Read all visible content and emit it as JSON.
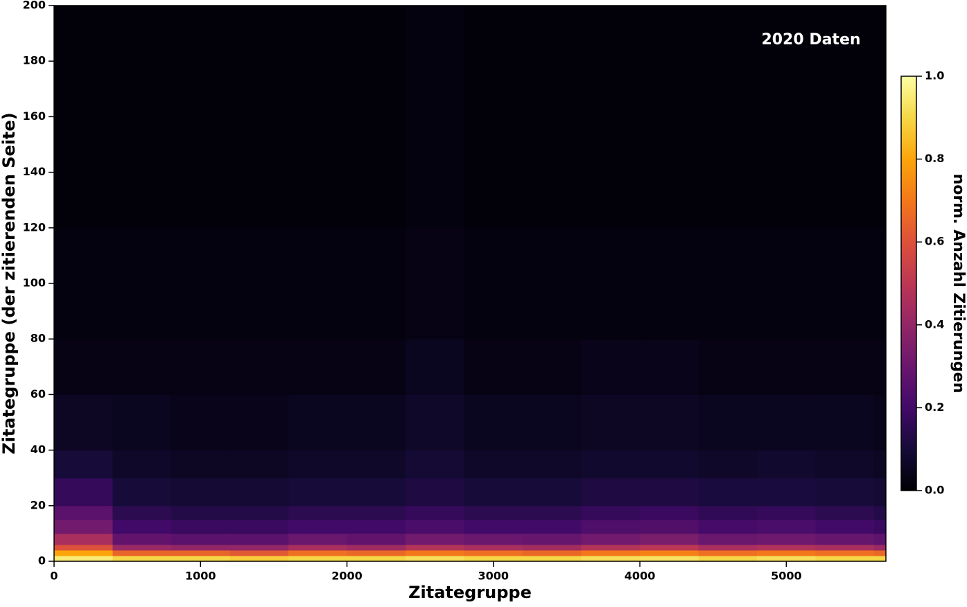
{
  "chart_data": {
    "type": "heatmap",
    "xlabel": "Zitategruppe",
    "ylabel": "Zitategruppe (der zitierenden Seite)",
    "annotation": "2020 Daten",
    "colorbar_label": "norm. Anzahl Zitierungen",
    "colormap": "inferno",
    "x_bins": [
      0,
      400,
      800,
      1200,
      1600,
      2000,
      2400,
      2800,
      3200,
      3600,
      4000,
      4400,
      4800,
      5200,
      5600,
      5680
    ],
    "y_bins": [
      0,
      2,
      4,
      6,
      10,
      15,
      20,
      30,
      40,
      60,
      80,
      120,
      200
    ],
    "values": [
      [
        0.95,
        0.9,
        0.9,
        0.88,
        0.9,
        0.9,
        0.92,
        0.9,
        0.9,
        0.92,
        0.93,
        0.9,
        0.92,
        0.9,
        0.9
      ],
      [
        0.8,
        0.65,
        0.65,
        0.62,
        0.68,
        0.66,
        0.7,
        0.68,
        0.66,
        0.7,
        0.72,
        0.68,
        0.7,
        0.68,
        0.66
      ],
      [
        0.6,
        0.42,
        0.4,
        0.4,
        0.45,
        0.43,
        0.48,
        0.45,
        0.44,
        0.48,
        0.5,
        0.45,
        0.47,
        0.45,
        0.42
      ],
      [
        0.45,
        0.28,
        0.26,
        0.26,
        0.3,
        0.28,
        0.32,
        0.3,
        0.29,
        0.32,
        0.34,
        0.3,
        0.31,
        0.29,
        0.27
      ],
      [
        0.32,
        0.2,
        0.18,
        0.18,
        0.2,
        0.2,
        0.22,
        0.2,
        0.2,
        0.23,
        0.24,
        0.21,
        0.22,
        0.2,
        0.18
      ],
      [
        0.26,
        0.15,
        0.13,
        0.13,
        0.15,
        0.15,
        0.17,
        0.15,
        0.15,
        0.17,
        0.18,
        0.16,
        0.17,
        0.15,
        0.13
      ],
      [
        0.17,
        0.1,
        0.09,
        0.09,
        0.1,
        0.1,
        0.12,
        0.1,
        0.1,
        0.12,
        0.12,
        0.11,
        0.11,
        0.1,
        0.09
      ],
      [
        0.1,
        0.07,
        0.06,
        0.06,
        0.07,
        0.07,
        0.09,
        0.07,
        0.07,
        0.08,
        0.08,
        0.07,
        0.08,
        0.07,
        0.06
      ],
      [
        0.06,
        0.05,
        0.04,
        0.04,
        0.05,
        0.05,
        0.07,
        0.05,
        0.05,
        0.06,
        0.06,
        0.05,
        0.05,
        0.05,
        0.04
      ],
      [
        0.03,
        0.03,
        0.03,
        0.03,
        0.03,
        0.03,
        0.05,
        0.03,
        0.03,
        0.04,
        0.04,
        0.03,
        0.03,
        0.03,
        0.03
      ],
      [
        0.02,
        0.02,
        0.02,
        0.02,
        0.02,
        0.02,
        0.03,
        0.02,
        0.02,
        0.02,
        0.02,
        0.02,
        0.02,
        0.02,
        0.02
      ],
      [
        0.01,
        0.01,
        0.01,
        0.01,
        0.01,
        0.01,
        0.02,
        0.01,
        0.01,
        0.01,
        0.01,
        0.01,
        0.01,
        0.01,
        0.01
      ]
    ],
    "xlim": [
      0,
      5680
    ],
    "xticks": [
      0,
      1000,
      2000,
      3000,
      4000,
      5000
    ],
    "ylim": [
      0,
      200
    ],
    "yticks": [
      0,
      20,
      40,
      60,
      80,
      100,
      120,
      140,
      160,
      180,
      200
    ],
    "zlim": [
      0,
      1
    ],
    "zticks": [
      {
        "value": 0,
        "label": "0.0"
      },
      0.2,
      0.4,
      0.6,
      0.8,
      {
        "value": 1,
        "label": "1.0"
      }
    ]
  }
}
